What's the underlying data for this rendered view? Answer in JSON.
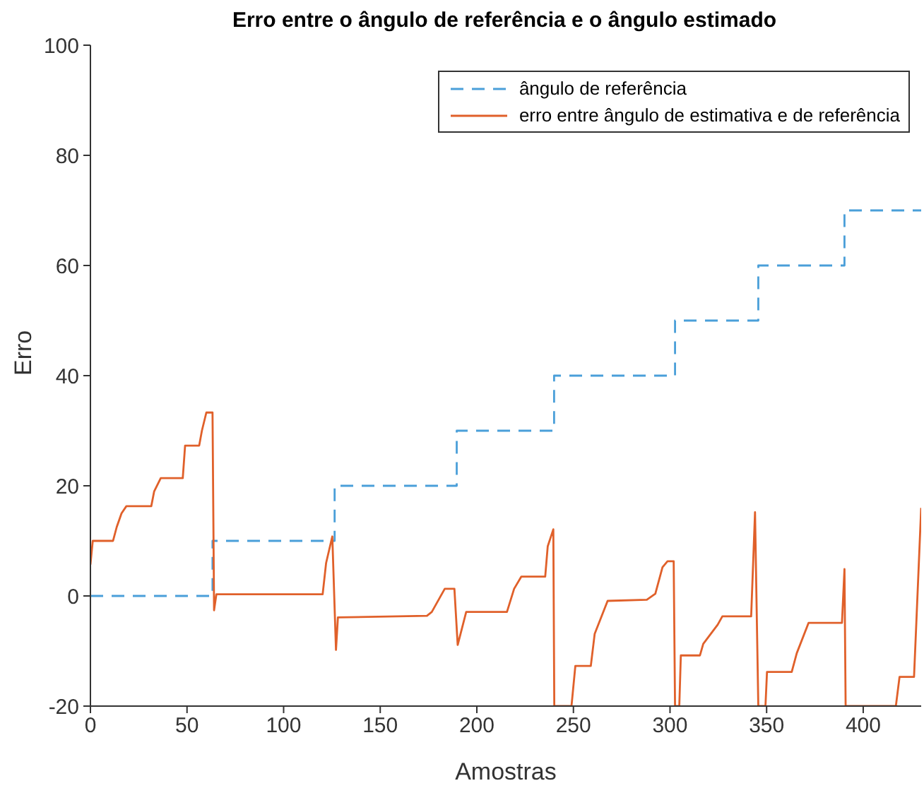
{
  "chart_data": {
    "type": "line",
    "title": "Erro entre o ângulo de referência e o ângulo estimado",
    "xlabel": "Amostras",
    "ylabel": "Erro",
    "xlim": [
      0,
      430
    ],
    "xticks": [
      0,
      50,
      100,
      150,
      200,
      250,
      300,
      350,
      400
    ],
    "ylim": [
      -20,
      100
    ],
    "yticks": [
      -20,
      0,
      20,
      40,
      60,
      80,
      100
    ],
    "grid": false,
    "legend": "top right",
    "series": [
      {
        "name": "ângulo de referência",
        "type": "step",
        "line_style": "dashed",
        "color": "#4a9fd9",
        "x": [
          0,
          63.2,
          126.4,
          189.6,
          240,
          302.6,
          345.7,
          390.3,
          430
        ],
        "values": [
          0,
          10,
          20,
          30,
          40,
          50,
          60,
          70,
          70
        ]
      },
      {
        "name": "erro entre ângulo de estimativa e de referência",
        "type": "line",
        "line_style": "solid",
        "color": "#e0602a",
        "x": [
          0,
          1.2,
          11.7,
          13.6,
          16.1,
          18.6,
          31.5,
          33,
          36.4,
          47.8,
          49,
          56.3,
          57.7,
          60,
          63.2,
          64,
          65.2,
          120.2,
          122,
          125.2,
          127.1,
          128.1,
          174.2,
          176.7,
          183.4,
          188.4,
          190.1,
          194.5,
          215.6,
          219.3,
          223,
          235.4,
          236.7,
          239.6,
          240.1,
          249,
          251,
          259,
          261,
          267.7,
          288,
          292.4,
          296.1,
          298.7,
          301.9,
          302.6,
          304.8,
          305.6,
          315.5,
          317.2,
          324.7,
          327.1,
          342,
          344,
          345.7,
          349.4,
          350.2,
          363,
          365.6,
          371.7,
          389,
          390.3,
          390.9,
          416.9,
          418.8,
          426.3,
          427.5,
          430
        ],
        "values": [
          5.7,
          10,
          10,
          12.5,
          15,
          16.3,
          16.3,
          19,
          21.4,
          21.4,
          27.3,
          27.3,
          30,
          33.3,
          33.3,
          -2.6,
          0.3,
          0.3,
          6,
          10.8,
          -9.8,
          -3.9,
          -3.6,
          -2.9,
          1.3,
          1.3,
          -8.9,
          -2.9,
          -2.9,
          1.3,
          3.5,
          3.5,
          9,
          12.1,
          -20,
          -20,
          -12.7,
          -12.7,
          -6.9,
          -0.9,
          -0.7,
          0.4,
          5.2,
          6.3,
          6.3,
          -20,
          -20,
          -10.8,
          -10.8,
          -8.7,
          -5.2,
          -3.7,
          -3.7,
          15.2,
          -20,
          -20,
          -13.8,
          -13.8,
          -10.4,
          -4.9,
          -4.9,
          4.9,
          -20,
          -20,
          -14.7,
          -14.7,
          -4.8,
          16
        ]
      }
    ]
  }
}
